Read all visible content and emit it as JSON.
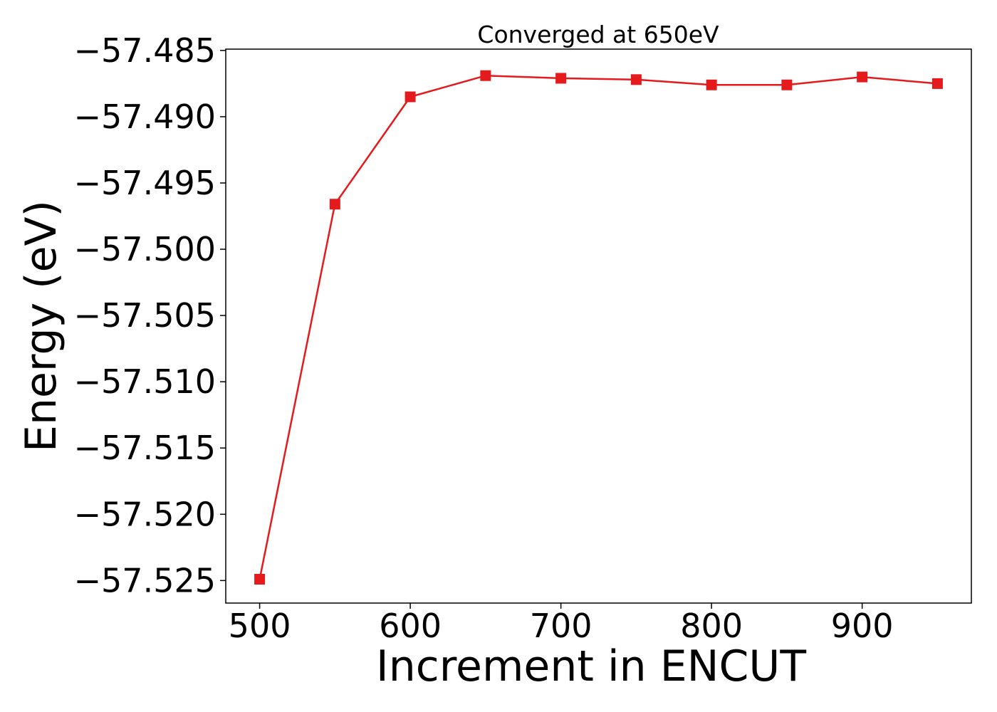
{
  "chart_data": {
    "type": "line",
    "title": "Converged at 650eV",
    "xlabel": "Increment in ENCUT",
    "ylabel": "Energy (eV)",
    "xlim": [
      477.5,
      972.5
    ],
    "ylim": [
      -57.5267,
      -57.4849
    ],
    "xticks": [
      500,
      600,
      700,
      800,
      900
    ],
    "xtick_labels": [
      "500",
      "600",
      "700",
      "800",
      "900"
    ],
    "yticks": [
      -57.485,
      -57.49,
      -57.495,
      -57.5,
      -57.505,
      -57.51,
      -57.515,
      -57.52,
      -57.525
    ],
    "ytick_labels": [
      "−57.485",
      "−57.490",
      "−57.495",
      "−57.500",
      "−57.505",
      "−57.510",
      "−57.515",
      "−57.520",
      "−57.525"
    ],
    "grid": false,
    "series": [
      {
        "color": "#e41a1c",
        "marker": "square",
        "x": [
          500,
          550,
          600,
          650,
          700,
          750,
          800,
          850,
          900,
          950
        ],
        "y": [
          -57.5249,
          -57.4966,
          -57.4885,
          -57.4869,
          -57.4871,
          -57.4872,
          -57.4876,
          -57.4876,
          -57.487,
          -57.4875
        ]
      }
    ]
  }
}
